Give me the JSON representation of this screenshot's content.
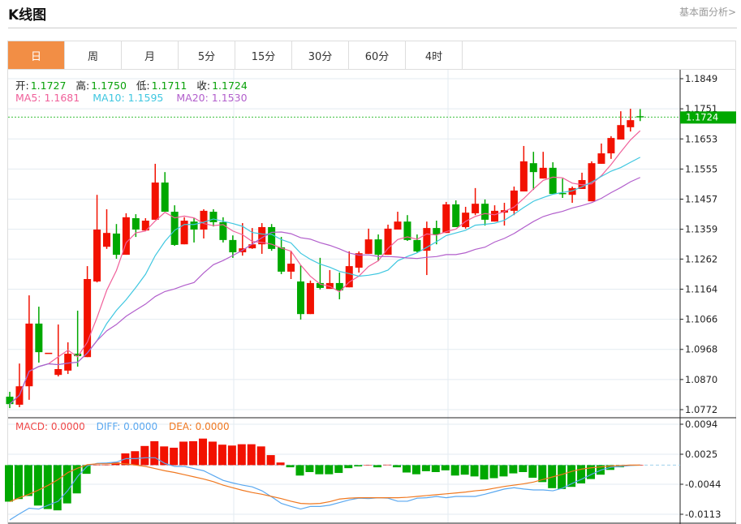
{
  "header": {
    "title": "K线图",
    "link": "基本面分析>"
  },
  "tabs": [
    {
      "label": "日",
      "active": true
    },
    {
      "label": "周"
    },
    {
      "label": "月"
    },
    {
      "label": "5分"
    },
    {
      "label": "15分"
    },
    {
      "label": "30分"
    },
    {
      "label": "60分"
    },
    {
      "label": "4时"
    }
  ],
  "ohlc_info": {
    "open_label": "开:",
    "open": "1.1727",
    "high_label": "高:",
    "high": "1.1750",
    "low_label": "低:",
    "low": "1.1711",
    "close_label": "收:",
    "close": "1.1724"
  },
  "ma_info": {
    "ma5": "MA5: 1.1681",
    "ma10": "MA10: 1.1595",
    "ma20": "MA20: 1.1530"
  },
  "macd_info": {
    "macd": "MACD: 0.0000",
    "diff": "DIFF: 0.0000",
    "dea": "DEA: 0.0000"
  },
  "current_price": "1.1724",
  "colors": {
    "up": "#f21100",
    "down": "#00a800",
    "ma5": "#f0609a",
    "ma10": "#3fc7e0",
    "ma20": "#b25fcc",
    "diff": "#5aa8f0",
    "dea": "#f07820",
    "accent": "#f28e45"
  },
  "chart_data": [
    {
      "type": "candlestick",
      "title": "K线图 日",
      "ylim": [
        1.0772,
        1.1849
      ],
      "yticks": [
        "1.1849",
        "1.1751",
        "1.1653",
        "1.1555",
        "1.1457",
        "1.1359",
        "1.1262",
        "1.1164",
        "1.1066",
        "1.0968",
        "1.0870",
        "1.0772"
      ],
      "ohlc": [
        [
          1.0814,
          1.083,
          1.0777,
          1.079
        ],
        [
          1.0788,
          1.0922,
          1.078,
          1.0848
        ],
        [
          1.0848,
          1.1144,
          1.0804,
          1.1052
        ],
        [
          1.1052,
          1.1107,
          1.0925,
          1.0959
        ],
        [
          1.0957,
          1.0957,
          1.0957,
          1.0957
        ],
        [
          1.0885,
          1.1049,
          1.088,
          1.0904
        ],
        [
          1.0899,
          1.0991,
          1.0888,
          1.0954
        ],
        [
          1.0954,
          1.1094,
          1.0912,
          1.0946
        ],
        [
          1.0943,
          1.1239,
          1.0943,
          1.1197
        ],
        [
          1.1189,
          1.1471,
          1.1186,
          1.1358
        ],
        [
          1.1302,
          1.1424,
          1.1295,
          1.1347
        ],
        [
          1.1345,
          1.1376,
          1.1263,
          1.1276
        ],
        [
          1.1276,
          1.1411,
          1.1276,
          1.1398
        ],
        [
          1.1395,
          1.1408,
          1.1334,
          1.1358
        ],
        [
          1.1355,
          1.1395,
          1.1355,
          1.1387
        ],
        [
          1.139,
          1.1572,
          1.139,
          1.1511
        ],
        [
          1.1511,
          1.1545,
          1.1416,
          1.1416
        ],
        [
          1.1416,
          1.1437,
          1.1305,
          1.1308
        ],
        [
          1.131,
          1.1398,
          1.131,
          1.1387
        ],
        [
          1.1384,
          1.1395,
          1.1316,
          1.1358
        ],
        [
          1.1358,
          1.1424,
          1.1329,
          1.1419
        ],
        [
          1.1416,
          1.1424,
          1.1368,
          1.1382
        ],
        [
          1.1382,
          1.1398,
          1.1316,
          1.1324
        ],
        [
          1.1324,
          1.1339,
          1.1266,
          1.1284
        ],
        [
          1.1284,
          1.1379,
          1.1273,
          1.1297
        ],
        [
          1.1297,
          1.1363,
          1.1295,
          1.131
        ],
        [
          1.131,
          1.1379,
          1.1279,
          1.1366
        ],
        [
          1.1366,
          1.1376,
          1.1289,
          1.1295
        ],
        [
          1.13,
          1.1334,
          1.1213,
          1.1221
        ],
        [
          1.1221,
          1.1289,
          1.1197,
          1.1247
        ],
        [
          1.1189,
          1.1242,
          1.1065,
          1.1083
        ],
        [
          1.1083,
          1.1192,
          1.1083,
          1.1184
        ],
        [
          1.1184,
          1.1266,
          1.1163,
          1.1168
        ],
        [
          1.1165,
          1.1226,
          1.1165,
          1.1184
        ],
        [
          1.1184,
          1.1218,
          1.1131,
          1.116
        ],
        [
          1.117,
          1.1287,
          1.117,
          1.1239
        ],
        [
          1.1234,
          1.1287,
          1.1218,
          1.1281
        ],
        [
          1.1279,
          1.1361,
          1.1279,
          1.1326
        ],
        [
          1.1326,
          1.1342,
          1.1255,
          1.1276
        ],
        [
          1.1276,
          1.1374,
          1.1276,
          1.1361
        ],
        [
          1.1358,
          1.1416,
          1.1358,
          1.1384
        ],
        [
          1.1384,
          1.1405,
          1.1321,
          1.1324
        ],
        [
          1.1324,
          1.1342,
          1.1284,
          1.1287
        ],
        [
          1.1289,
          1.1384,
          1.121,
          1.1363
        ],
        [
          1.1363,
          1.1387,
          1.131,
          1.1342
        ],
        [
          1.1347,
          1.1448,
          1.1347,
          1.144
        ],
        [
          1.144,
          1.1453,
          1.1366,
          1.1366
        ],
        [
          1.1366,
          1.1432,
          1.1361,
          1.1413
        ],
        [
          1.1411,
          1.1493,
          1.1405,
          1.1442
        ],
        [
          1.1442,
          1.1456,
          1.1371,
          1.139
        ],
        [
          1.1384,
          1.1437,
          1.1384,
          1.1419
        ],
        [
          1.1413,
          1.1445,
          1.1371,
          1.1421
        ],
        [
          1.1419,
          1.1498,
          1.1405,
          1.1485
        ],
        [
          1.1482,
          1.163,
          1.1482,
          1.158
        ],
        [
          1.1574,
          1.1611,
          1.1487,
          1.1545
        ],
        [
          1.1524,
          1.1611,
          1.1524,
          1.1559
        ],
        [
          1.1559,
          1.1577,
          1.1474,
          1.1474
        ],
        [
          1.1477,
          1.1524,
          1.1461,
          1.1474
        ],
        [
          1.1471,
          1.1498,
          1.1445,
          1.1493
        ],
        [
          1.149,
          1.1543,
          1.149,
          1.1519
        ],
        [
          1.145,
          1.158,
          1.145,
          1.1574
        ],
        [
          1.1572,
          1.1638,
          1.1572,
          1.1606
        ],
        [
          1.1606,
          1.1662,
          1.1588,
          1.1656
        ],
        [
          1.1651,
          1.1743,
          1.1651,
          1.1698
        ],
        [
          1.1691,
          1.1751,
          1.1677,
          1.1714
        ],
        [
          1.1727,
          1.175,
          1.1711,
          1.1724
        ]
      ],
      "ma_periods": [
        5,
        10,
        20
      ]
    },
    {
      "type": "bar",
      "title": "MACD",
      "ylim": [
        -0.0113,
        0.0094
      ],
      "yticks": [
        "0.0094",
        "0.0025",
        "-0.0044",
        "-0.0113"
      ],
      "macd": [
        -0.0084,
        -0.0078,
        -0.0071,
        -0.0093,
        -0.0101,
        -0.0104,
        -0.0088,
        -0.0065,
        -0.002,
        0.0001,
        0.0001,
        0.0006,
        0.0027,
        0.0032,
        0.0044,
        0.0055,
        0.0043,
        0.004,
        0.0054,
        0.0055,
        0.0061,
        0.0054,
        0.0047,
        0.0045,
        0.0048,
        0.0048,
        0.0043,
        0.0023,
        0.0006,
        -0.0005,
        -0.0024,
        -0.0016,
        -0.0021,
        -0.0021,
        -0.0018,
        -0.0007,
        -0.0003,
        0,
        -0.0005,
        0.0001,
        -0.0005,
        -0.0017,
        -0.0021,
        -0.0014,
        -0.0016,
        -0.0012,
        -0.0024,
        -0.0022,
        -0.0026,
        -0.0033,
        -0.003,
        -0.0026,
        -0.0019,
        -0.0016,
        -0.0029,
        -0.0039,
        -0.0053,
        -0.0055,
        -0.005,
        -0.0042,
        -0.0032,
        -0.0022,
        -0.0011,
        -0.0005,
        0,
        0
      ],
      "diff": [
        -0.0126,
        -0.0112,
        -0.0099,
        -0.0101,
        -0.0092,
        -0.0083,
        -0.0058,
        -0.0026,
        -0.0002,
        0.0004,
        0.0005,
        0.0007,
        0.0015,
        0.0015,
        0.0017,
        0.0017,
        0.0004,
        -0.0003,
        -0.0003,
        -0.0008,
        -0.0013,
        -0.0024,
        -0.0035,
        -0.0041,
        -0.0046,
        -0.005,
        -0.0059,
        -0.0073,
        -0.0088,
        -0.0095,
        -0.0101,
        -0.0095,
        -0.0095,
        -0.0092,
        -0.0086,
        -0.008,
        -0.0076,
        -0.0077,
        -0.0075,
        -0.0076,
        -0.0083,
        -0.0083,
        -0.0076,
        -0.0075,
        -0.0072,
        -0.0075,
        -0.0072,
        -0.0072,
        -0.0072,
        -0.0067,
        -0.0061,
        -0.0055,
        -0.0052,
        -0.0055,
        -0.0057,
        -0.0057,
        -0.0059,
        -0.0053,
        -0.0042,
        -0.0032,
        -0.0021,
        -0.0011,
        -0.0005,
        -0.0003,
        -0.0001,
        0
      ],
      "dea": [
        -0.0084,
        -0.0075,
        -0.0067,
        -0.0057,
        -0.0046,
        -0.0033,
        -0.0017,
        -0.0007,
        0.0001,
        0.0003,
        0.0003,
        0.0004,
        0.0003,
        0,
        -0.0003,
        -0.0008,
        -0.0013,
        -0.0017,
        -0.0022,
        -0.0027,
        -0.0032,
        -0.0038,
        -0.0046,
        -0.0052,
        -0.0058,
        -0.0063,
        -0.0067,
        -0.0072,
        -0.0077,
        -0.0083,
        -0.0088,
        -0.0089,
        -0.0088,
        -0.0084,
        -0.0078,
        -0.0076,
        -0.0075,
        -0.0075,
        -0.0075,
        -0.0075,
        -0.0075,
        -0.0074,
        -0.0072,
        -0.007,
        -0.0068,
        -0.0066,
        -0.0064,
        -0.0062,
        -0.0059,
        -0.0057,
        -0.0053,
        -0.0049,
        -0.0046,
        -0.0043,
        -0.0039,
        -0.0033,
        -0.0027,
        -0.0021,
        -0.0014,
        -0.0009,
        -0.0006,
        -0.0004,
        -0.0002,
        -0.0001,
        0,
        0
      ]
    }
  ]
}
